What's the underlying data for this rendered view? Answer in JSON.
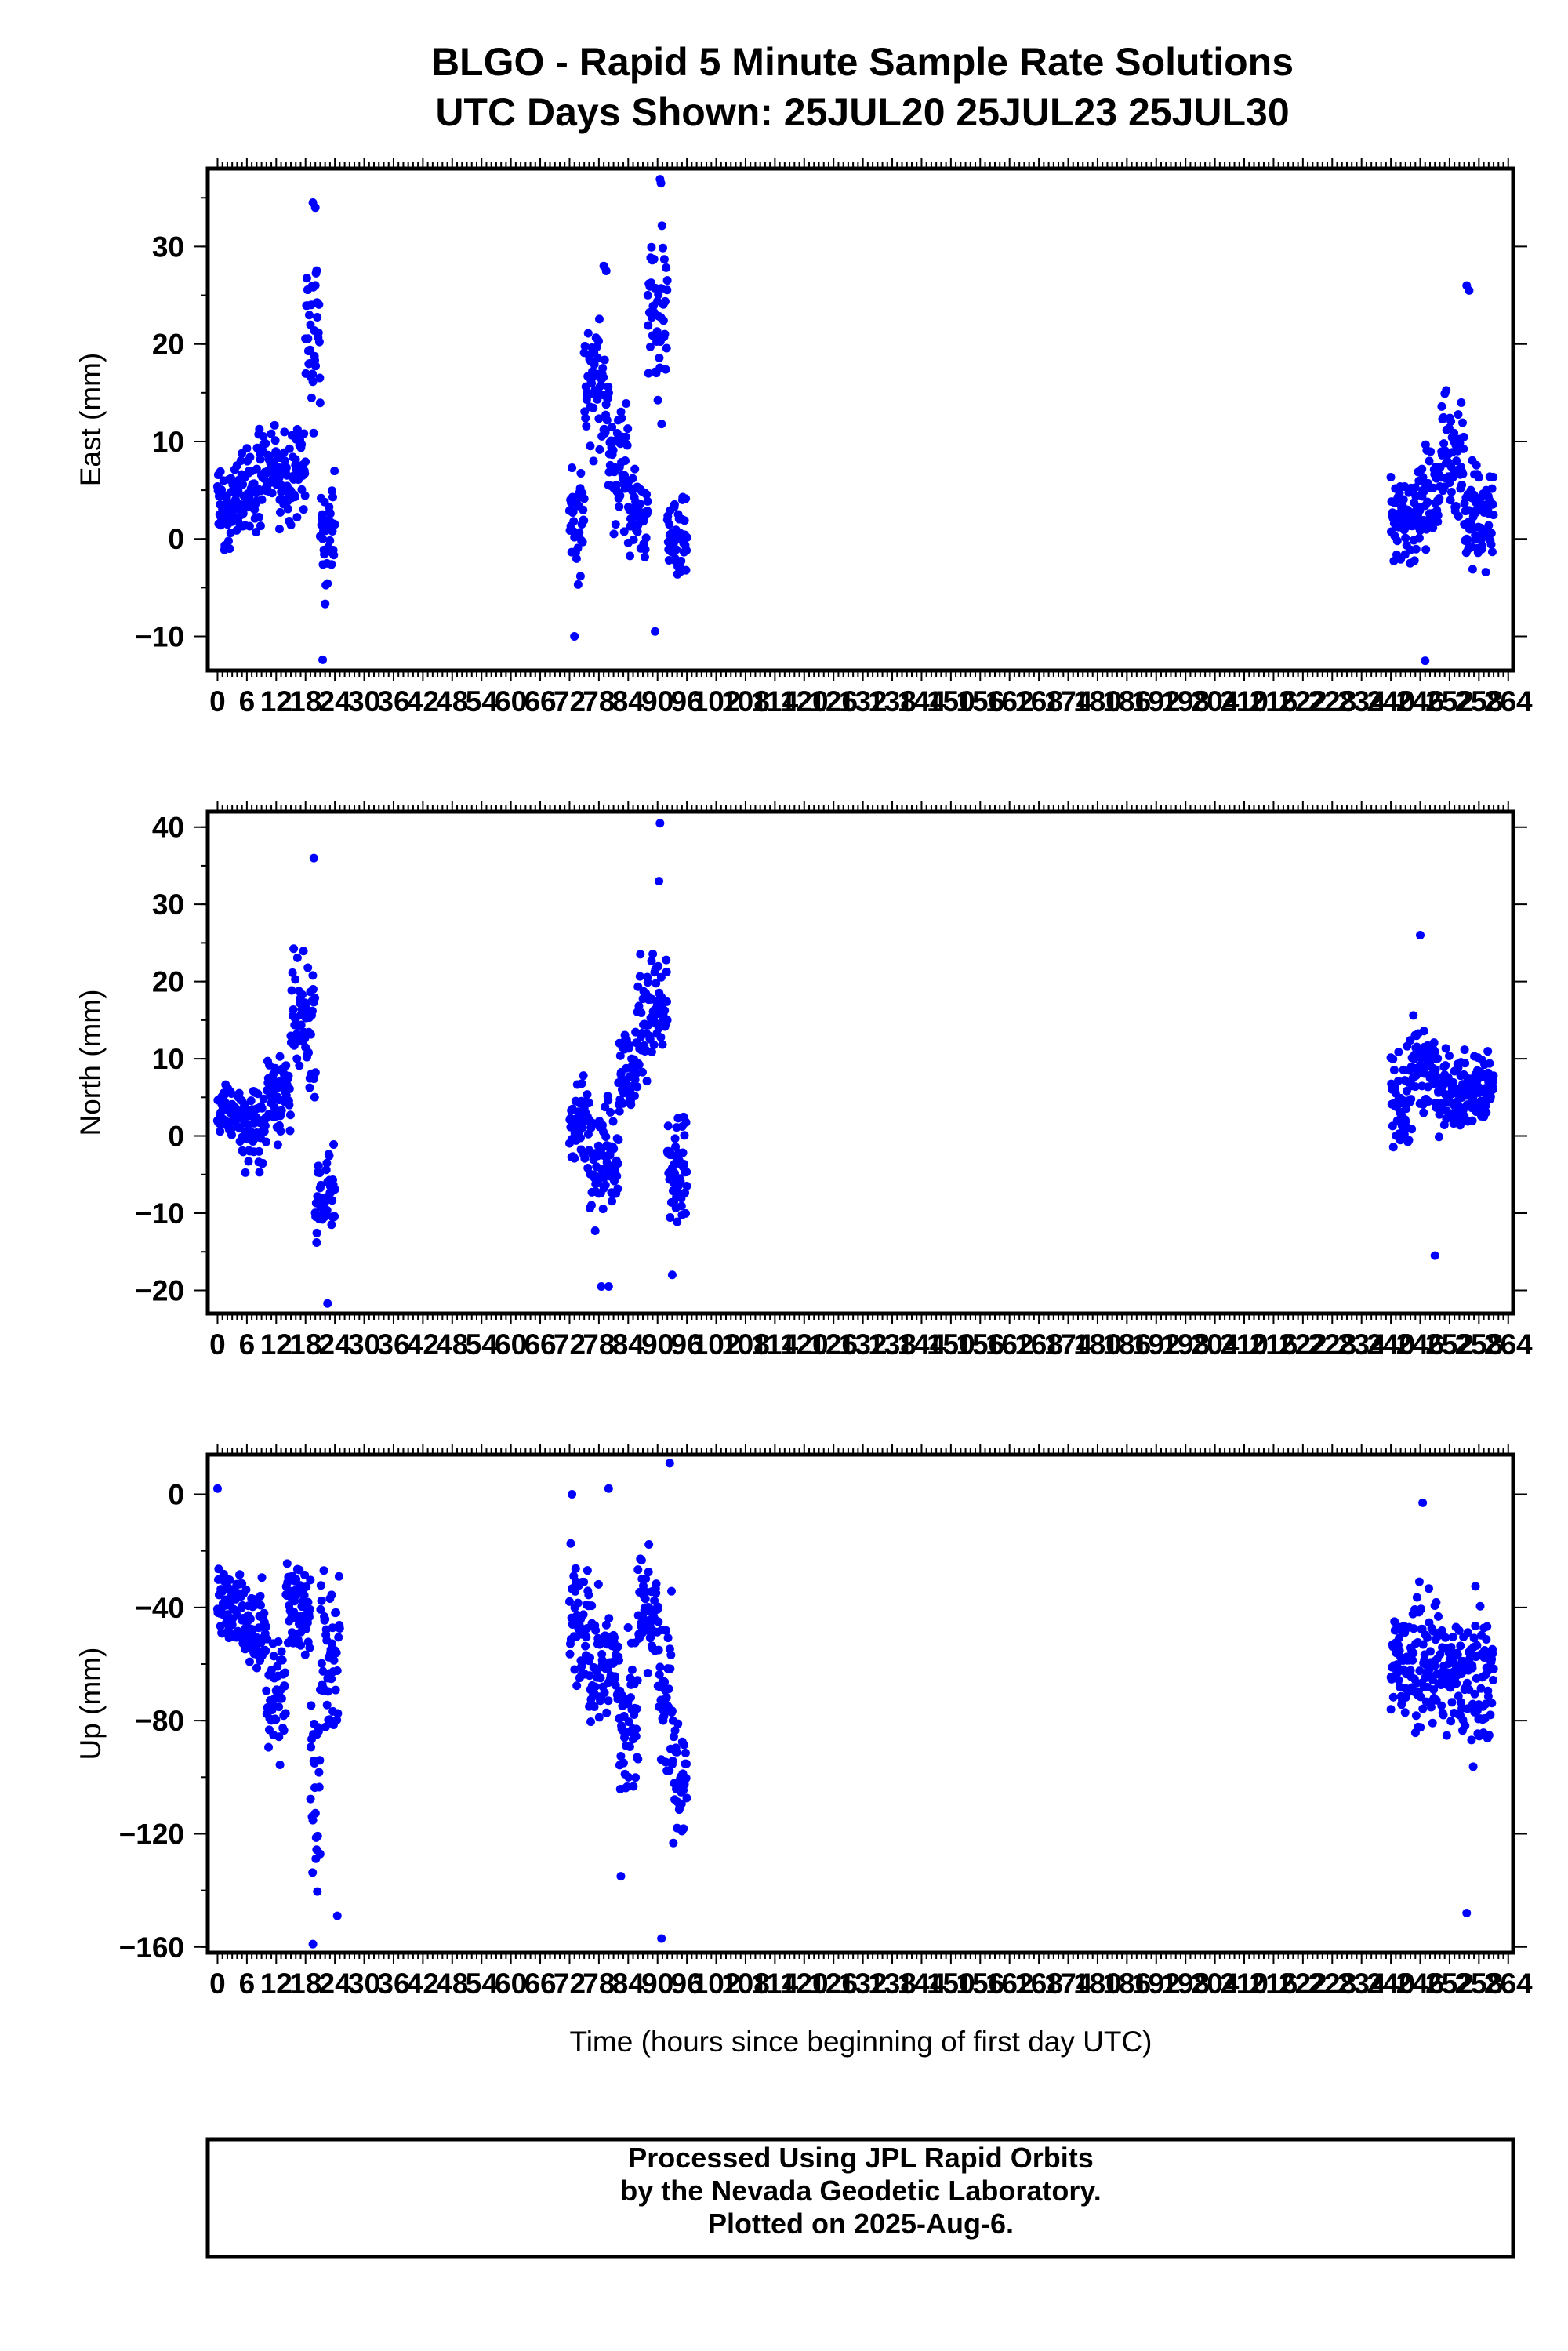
{
  "title": {
    "line1": "BLGO - Rapid 5 Minute Sample Rate Solutions",
    "line2": "UTC Days Shown:  25JUL20 25JUL23 25JUL30"
  },
  "footer": {
    "line1": "Processed Using JPL Rapid Orbits",
    "line2": "by the Nevada Geodetic Laboratory.",
    "line3": "Plotted on 2025-Aug-6."
  },
  "colors": {
    "points": "#0000ff",
    "axes": "#000000",
    "background": "#ffffff"
  },
  "chart_data": [
    {
      "type": "scatter",
      "ylabel": "East (mm)",
      "xlabel": "",
      "xlim": [
        -2,
        265
      ],
      "ylim": [
        -13.5,
        38
      ],
      "yticks": [
        -10,
        0,
        10,
        20,
        30
      ],
      "ytick_labels": [
        "−10",
        "0",
        "10",
        "20",
        "30"
      ],
      "series_color": "#0000ff",
      "clusters": [
        {
          "x": [
            0,
            3
          ],
          "mean": 3,
          "spread": 5
        },
        {
          "x": [
            3,
            8
          ],
          "mean": 5,
          "spread": 6
        },
        {
          "x": [
            8,
            12
          ],
          "mean": 7,
          "spread": 6
        },
        {
          "x": [
            12,
            16
          ],
          "mean": 6,
          "spread": 6
        },
        {
          "x": [
            16,
            18
          ],
          "mean": 8,
          "spread": 6
        },
        {
          "x": [
            18,
            21
          ],
          "mean": 22,
          "spread": 10
        },
        {
          "x": [
            21,
            24
          ],
          "mean": 0,
          "spread": 7
        },
        {
          "x": [
            72,
            75
          ],
          "mean": 2,
          "spread": 7
        },
        {
          "x": [
            75,
            80
          ],
          "mean": 15,
          "spread": 8
        },
        {
          "x": [
            80,
            84
          ],
          "mean": 8,
          "spread": 8
        },
        {
          "x": [
            84,
            88
          ],
          "mean": 3,
          "spread": 6
        },
        {
          "x": [
            88,
            92
          ],
          "mean": 22,
          "spread": 12
        },
        {
          "x": [
            92,
            96
          ],
          "mean": 0,
          "spread": 5
        },
        {
          "x": [
            240,
            245
          ],
          "mean": 2,
          "spread": 7
        },
        {
          "x": [
            245,
            250
          ],
          "mean": 4,
          "spread": 6
        },
        {
          "x": [
            250,
            255
          ],
          "mean": 9,
          "spread": 8
        },
        {
          "x": [
            255,
            261
          ],
          "mean": 2,
          "spread": 7
        }
      ],
      "highlight_points": [
        [
          19.5,
          34.5
        ],
        [
          20,
          34
        ],
        [
          90.5,
          36.9
        ],
        [
          90.7,
          36.5
        ],
        [
          21.5,
          -12.4
        ],
        [
          73,
          -10
        ],
        [
          89.5,
          -9.5
        ],
        [
          247,
          -12.5
        ],
        [
          255.5,
          26
        ],
        [
          256,
          25.5
        ],
        [
          79,
          28
        ],
        [
          79.5,
          27.5
        ]
      ]
    },
    {
      "type": "scatter",
      "ylabel": "North (mm)",
      "xlabel": "",
      "xlim": [
        -2,
        265
      ],
      "ylim": [
        -23,
        42
      ],
      "yticks": [
        -20,
        -10,
        0,
        10,
        20,
        30,
        40
      ],
      "ytick_labels": [
        "−20",
        "−10",
        "0",
        "10",
        "20",
        "30",
        "40"
      ],
      "series_color": "#0000ff",
      "clusters": [
        {
          "x": [
            0,
            5
          ],
          "mean": 3,
          "spread": 4
        },
        {
          "x": [
            5,
            10
          ],
          "mean": 1,
          "spread": 6
        },
        {
          "x": [
            10,
            15
          ],
          "mean": 6,
          "spread": 8
        },
        {
          "x": [
            15,
            20
          ],
          "mean": 14,
          "spread": 10
        },
        {
          "x": [
            20,
            24
          ],
          "mean": -8,
          "spread": 9
        },
        {
          "x": [
            72,
            76
          ],
          "mean": 2,
          "spread": 7
        },
        {
          "x": [
            76,
            82
          ],
          "mean": -2,
          "spread": 9
        },
        {
          "x": [
            82,
            86
          ],
          "mean": 8,
          "spread": 9
        },
        {
          "x": [
            86,
            92
          ],
          "mean": 16,
          "spread": 10
        },
        {
          "x": [
            92,
            96
          ],
          "mean": -5,
          "spread": 10
        },
        {
          "x": [
            240,
            244
          ],
          "mean": 4,
          "spread": 8
        },
        {
          "x": [
            244,
            249
          ],
          "mean": 9,
          "spread": 9
        },
        {
          "x": [
            249,
            254
          ],
          "mean": 6,
          "spread": 6
        },
        {
          "x": [
            254,
            261
          ],
          "mean": 6,
          "spread": 6
        }
      ],
      "highlight_points": [
        [
          19.7,
          36
        ],
        [
          90.5,
          40.5
        ],
        [
          90.3,
          33
        ],
        [
          22.5,
          -21.7
        ],
        [
          78.5,
          -19.5
        ],
        [
          80,
          -19.5
        ],
        [
          246,
          26
        ],
        [
          249,
          -15.5
        ],
        [
          93,
          -18
        ]
      ]
    },
    {
      "type": "scatter",
      "ylabel": "Up (mm)",
      "xlabel": "Time (hours since beginning of first day UTC)",
      "xlim": [
        -2,
        265
      ],
      "ylim": [
        -162,
        14
      ],
      "yticks": [
        -160,
        -120,
        -80,
        -40,
        0
      ],
      "ytick_labels": [
        "−160",
        "−120",
        "−80",
        "−40",
        "0"
      ],
      "series_color": "#0000ff",
      "clusters": [
        {
          "x": [
            0,
            5
          ],
          "mean": -38,
          "spread": 18
        },
        {
          "x": [
            5,
            10
          ],
          "mean": -48,
          "spread": 18
        },
        {
          "x": [
            10,
            14
          ],
          "mean": -70,
          "spread": 30
        },
        {
          "x": [
            14,
            19
          ],
          "mean": -40,
          "spread": 22
        },
        {
          "x": [
            19,
            21
          ],
          "mean": -100,
          "spread": 40
        },
        {
          "x": [
            21,
            25
          ],
          "mean": -60,
          "spread": 40
        },
        {
          "x": [
            72,
            76
          ],
          "mean": -45,
          "spread": 30
        },
        {
          "x": [
            76,
            82
          ],
          "mean": -60,
          "spread": 30
        },
        {
          "x": [
            82,
            86
          ],
          "mean": -80,
          "spread": 40
        },
        {
          "x": [
            86,
            90
          ],
          "mean": -40,
          "spread": 25
        },
        {
          "x": [
            90,
            93
          ],
          "mean": -70,
          "spread": 40
        },
        {
          "x": [
            93,
            96
          ],
          "mean": -100,
          "spread": 30
        },
        {
          "x": [
            240,
            245
          ],
          "mean": -60,
          "spread": 22
        },
        {
          "x": [
            245,
            250
          ],
          "mean": -60,
          "spread": 28
        },
        {
          "x": [
            250,
            255
          ],
          "mean": -65,
          "spread": 25
        },
        {
          "x": [
            255,
            261
          ],
          "mean": -65,
          "spread": 30
        }
      ],
      "highlight_points": [
        [
          0,
          2
        ],
        [
          72.5,
          0
        ],
        [
          80,
          2
        ],
        [
          92.5,
          11
        ],
        [
          19.5,
          -159
        ],
        [
          90.8,
          -157
        ],
        [
          255.5,
          -148
        ],
        [
          24.5,
          -149
        ],
        [
          82.5,
          -135
        ],
        [
          246.5,
          -3
        ],
        [
          240,
          -76
        ]
      ]
    }
  ],
  "x_axis": {
    "ticks": [
      0,
      6,
      12,
      18,
      24,
      30,
      36,
      42,
      48,
      54,
      60,
      66,
      72,
      78,
      84,
      90,
      96,
      102,
      108,
      114,
      120,
      126,
      132,
      138,
      144,
      150,
      156,
      162,
      168,
      174,
      180,
      186,
      192,
      198,
      204,
      210,
      216,
      222,
      228,
      234,
      240,
      246,
      252,
      258,
      264
    ],
    "tick_labels": [
      "0",
      "6",
      "12",
      "18",
      "24",
      "30",
      "36",
      "42",
      "48",
      "54",
      "60",
      "66",
      "72",
      "78",
      "84",
      "90",
      "96",
      "102",
      "108",
      "114",
      "120",
      "126",
      "132",
      "138",
      "144",
      "150",
      "156",
      "162",
      "168",
      "174",
      "180",
      "186",
      "192",
      "198",
      "204",
      "210",
      "216",
      "222",
      "228",
      "234",
      "240",
      "246",
      "252",
      "258",
      "264"
    ]
  }
}
